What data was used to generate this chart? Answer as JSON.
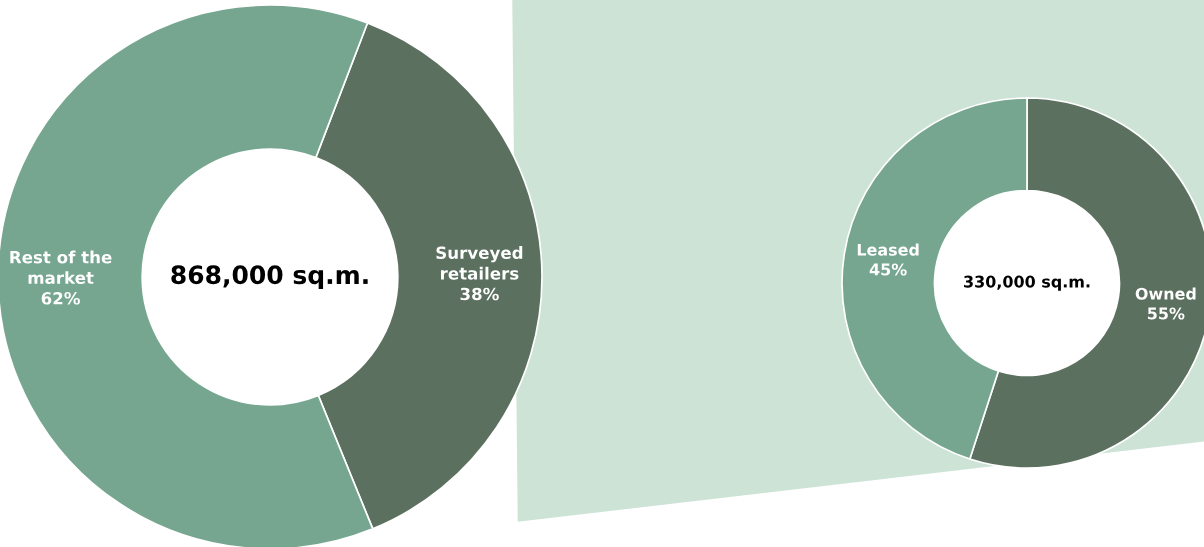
{
  "chart_data": [
    {
      "type": "donut",
      "categories": [
        "Surveyed retailers",
        "Rest of the market"
      ],
      "values": [
        38,
        62
      ],
      "colors": [
        "#5c7060",
        "#76a690"
      ],
      "value_labels": [
        "38%",
        "62%"
      ],
      "annotations": [
        "868,000 sq.m."
      ]
    },
    {
      "type": "donut",
      "categories": [
        "Owned",
        "Leased"
      ],
      "values": [
        55,
        45
      ],
      "colors": [
        "#5c7060",
        "#76a690"
      ],
      "value_labels": [
        "55%",
        "45%"
      ],
      "annotations": [
        "330,000 sq.m."
      ]
    }
  ]
}
